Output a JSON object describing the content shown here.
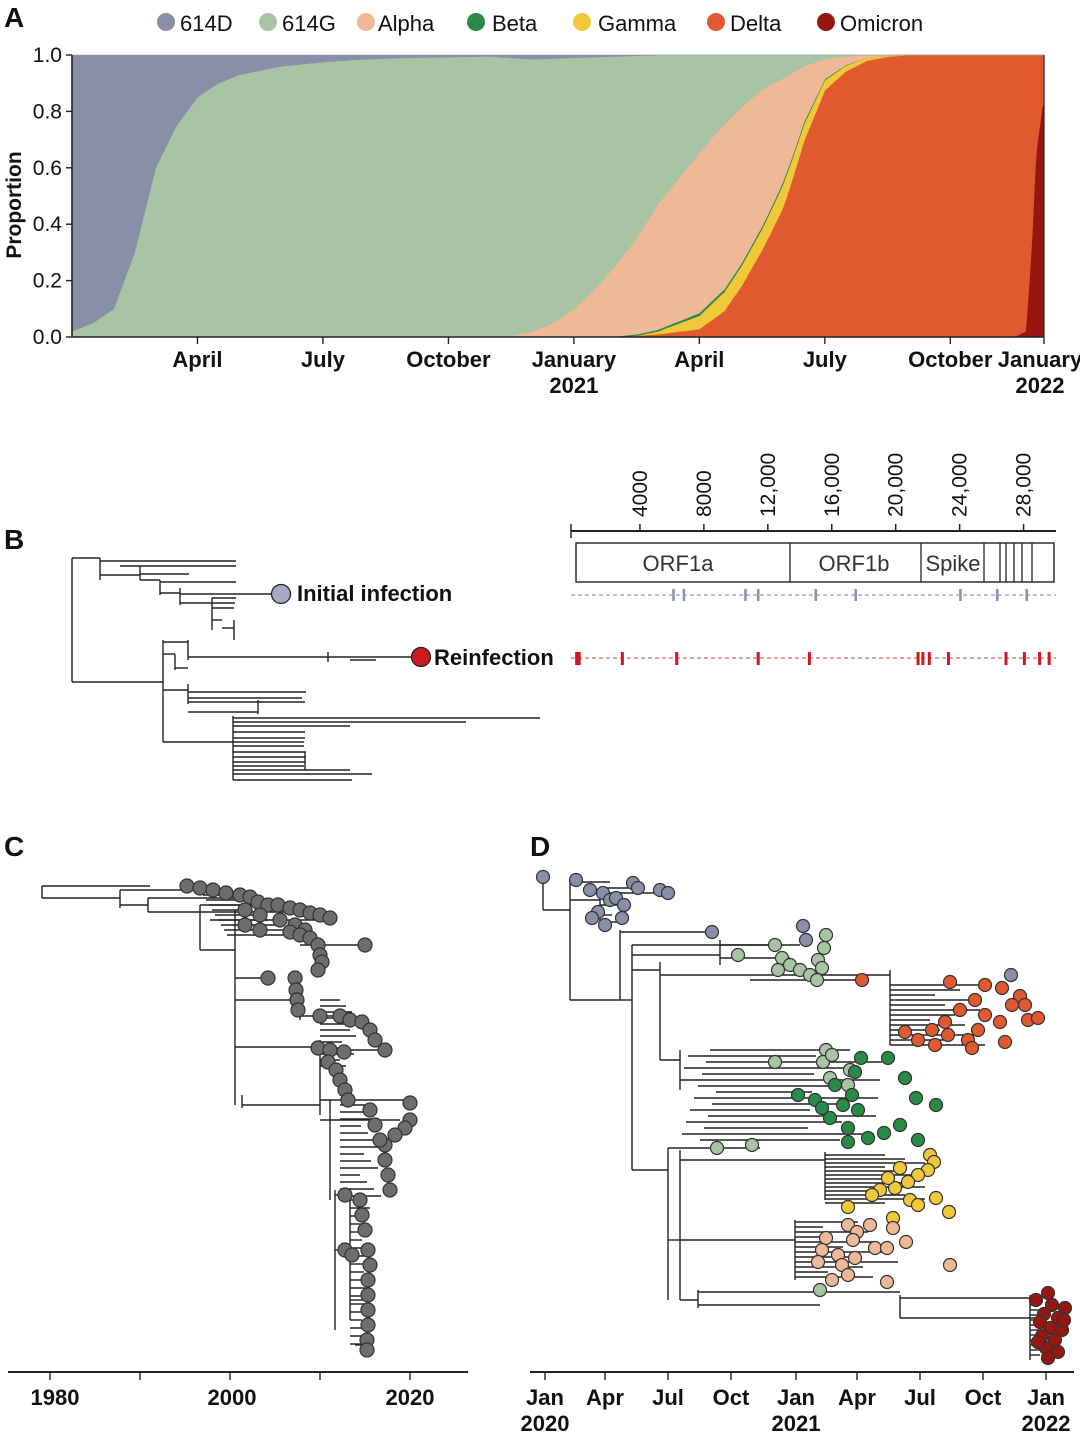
{
  "panels": {
    "a": "A",
    "b": "B",
    "c": "C",
    "d": "D"
  },
  "colors": {
    "614D": "#8a8fa8",
    "614G": "#a9c4a4",
    "Alpha": "#efb896",
    "Beta": "#2a8a48",
    "Gamma": "#efc93a",
    "Delta": "#e0592f",
    "Omicron": "#961710",
    "node_gray": "#666666",
    "mut_initial": "#8f92b4",
    "mut_reinfection": "#d01620"
  },
  "chart_data": [
    {
      "id": "A",
      "type": "area",
      "stacked": true,
      "ylabel": "Proportion",
      "ylim": [
        0,
        1
      ],
      "yticks": [
        "0.0",
        "0.2",
        "0.4",
        "0.6",
        "0.8",
        "1.0"
      ],
      "xlim_months": [
        0,
        23
      ],
      "xtick_labels": [
        {
          "m": 3,
          "line1": "April",
          "line2": ""
        },
        {
          "m": 6,
          "line1": "July",
          "line2": ""
        },
        {
          "m": 9,
          "line1": "October",
          "line2": ""
        },
        {
          "m": 12,
          "line1": "January",
          "line2": "2021"
        },
        {
          "m": 15,
          "line1": "April",
          "line2": ""
        },
        {
          "m": 18,
          "line1": "July",
          "line2": ""
        },
        {
          "m": 21,
          "line1": "October",
          "line2": ""
        },
        {
          "m": 24,
          "line1": "January",
          "line2": "2022"
        }
      ],
      "legend": [
        "614D",
        "614G",
        "Alpha",
        "Beta",
        "Gamma",
        "Delta",
        "Omicron"
      ],
      "series": [
        {
          "name": "Omicron",
          "points": [
            [
              0,
              0
            ],
            [
              22.4,
              0
            ],
            [
              22.6,
              0.005
            ],
            [
              22.8,
              0.02
            ],
            [
              22.95,
              0.3
            ],
            [
              23.05,
              0.65
            ],
            [
              23.2,
              0.82
            ]
          ]
        },
        {
          "name": "Delta",
          "points": [
            [
              0,
              0
            ],
            [
              13,
              0
            ],
            [
              14,
              0.01
            ],
            [
              15,
              0.03
            ],
            [
              15.6,
              0.1
            ],
            [
              16,
              0.2
            ],
            [
              16.5,
              0.35
            ],
            [
              17,
              0.5
            ],
            [
              17.5,
              0.7
            ],
            [
              18,
              0.87
            ],
            [
              18.5,
              0.93
            ],
            [
              19,
              0.96
            ],
            [
              19.5,
              0.98
            ],
            [
              20,
              0.99
            ],
            [
              22.4,
              0.998
            ],
            [
              22.8,
              0.97
            ],
            [
              23.05,
              0.35
            ],
            [
              23.2,
              0.18
            ]
          ]
        },
        {
          "name": "Gamma",
          "points": [
            [
              0,
              0
            ],
            [
              13.5,
              0
            ],
            [
              14,
              0.01
            ],
            [
              14.5,
              0.03
            ],
            [
              15,
              0.05
            ],
            [
              15.5,
              0.07
            ],
            [
              16,
              0.08
            ],
            [
              16.5,
              0.085
            ],
            [
              17,
              0.09
            ],
            [
              17.5,
              0.06
            ],
            [
              18,
              0.035
            ],
            [
              18.5,
              0.02
            ],
            [
              19,
              0.01
            ],
            [
              19.5,
              0.003
            ],
            [
              20,
              0
            ]
          ]
        },
        {
          "name": "Beta",
          "points": [
            [
              0,
              0
            ],
            [
              12,
              0
            ],
            [
              13,
              0.003
            ],
            [
              14,
              0.006
            ],
            [
              15,
              0.01
            ],
            [
              16,
              0.01
            ],
            [
              17,
              0.01
            ],
            [
              17.5,
              0.008
            ],
            [
              18,
              0.004
            ],
            [
              18.5,
              0.002
            ],
            [
              19,
              0
            ]
          ]
        },
        {
          "name": "Alpha",
          "points": [
            [
              0,
              0
            ],
            [
              10,
              0
            ],
            [
              10.5,
              0.005
            ],
            [
              11,
              0.02
            ],
            [
              11.5,
              0.05
            ],
            [
              12,
              0.1
            ],
            [
              12.5,
              0.17
            ],
            [
              13,
              0.25
            ],
            [
              13.5,
              0.34
            ],
            [
              14,
              0.45
            ],
            [
              14.5,
              0.53
            ],
            [
              15,
              0.6
            ],
            [
              15.5,
              0.63
            ],
            [
              16,
              0.62
            ],
            [
              16.5,
              0.55
            ],
            [
              17,
              0.4
            ],
            [
              17.5,
              0.2
            ],
            [
              18,
              0.07
            ],
            [
              18.5,
              0.03
            ],
            [
              19,
              0.01
            ],
            [
              19.5,
              0.003
            ],
            [
              20,
              0
            ]
          ]
        },
        {
          "name": "614G",
          "points": [
            [
              0,
              0.02
            ],
            [
              0.5,
              0.05
            ],
            [
              1,
              0.1
            ],
            [
              1.5,
              0.3
            ],
            [
              2,
              0.6
            ],
            [
              2.5,
              0.75
            ],
            [
              3,
              0.85
            ],
            [
              3.5,
              0.9
            ],
            [
              4,
              0.93
            ],
            [
              5,
              0.96
            ],
            [
              6,
              0.975
            ],
            [
              7,
              0.985
            ],
            [
              8,
              0.99
            ],
            [
              10,
              0.995
            ],
            [
              11,
              0.985
            ],
            [
              12,
              0.9
            ],
            [
              12.5,
              0.83
            ],
            [
              13,
              0.74
            ],
            [
              13.5,
              0.65
            ],
            [
              14,
              0.54
            ],
            [
              14.5,
              0.46
            ],
            [
              15,
              0.37
            ],
            [
              15.5,
              0.28
            ],
            [
              16,
              0.21
            ],
            [
              16.5,
              0.14
            ],
            [
              17,
              0.09
            ],
            [
              17.5,
              0.04
            ],
            [
              18,
              0.015
            ],
            [
              18.5,
              0.005
            ],
            [
              19,
              0
            ]
          ]
        },
        {
          "name": "614D",
          "points": [
            [
              0,
              0.98
            ],
            [
              0.5,
              0.95
            ],
            [
              1,
              0.9
            ],
            [
              1.5,
              0.7
            ],
            [
              2,
              0.4
            ],
            [
              2.5,
              0.25
            ],
            [
              3,
              0.15
            ],
            [
              3.5,
              0.1
            ],
            [
              4,
              0.07
            ],
            [
              5,
              0.04
            ],
            [
              6,
              0.025
            ],
            [
              7,
              0.015
            ],
            [
              8,
              0.01
            ],
            [
              10,
              0.005
            ],
            [
              11,
              0.015
            ],
            [
              12,
              0.01
            ],
            [
              13,
              0.005
            ],
            [
              14,
              0
            ]
          ]
        }
      ]
    },
    {
      "id": "B",
      "type": "genome-map",
      "scale_ticks": [
        "4000",
        "8000",
        "12,000",
        "16,000",
        "20,000",
        "24,000",
        "28,000"
      ],
      "genes": [
        "ORF1a",
        "ORF1b",
        "Spike"
      ],
      "labels": {
        "initial": "Initial infection",
        "reinfection": "Reinfection"
      },
      "initial_mutations": [
        6100,
        6750,
        10600,
        11400,
        15000,
        17500,
        24050,
        26350,
        28200
      ],
      "reinfection_mutations": [
        40,
        200,
        2900,
        6300,
        11400,
        14600,
        21400,
        21700,
        22100,
        23300,
        26900,
        28050,
        29000,
        29600
      ]
    },
    {
      "id": "C",
      "type": "tree",
      "x_ticks": [
        "1980",
        "2000",
        "2020"
      ]
    },
    {
      "id": "D",
      "type": "tree",
      "x_ticks": [
        {
          "line1": "Jan",
          "line2": "2020"
        },
        {
          "line1": "Apr",
          "line2": ""
        },
        {
          "line1": "Jul",
          "line2": ""
        },
        {
          "line1": "Oct",
          "line2": ""
        },
        {
          "line1": "Jan",
          "line2": "2021"
        },
        {
          "line1": "Apr",
          "line2": ""
        },
        {
          "line1": "Jul",
          "line2": ""
        },
        {
          "line1": "Oct",
          "line2": ""
        },
        {
          "line1": "Jan",
          "line2": "2022"
        }
      ]
    }
  ]
}
